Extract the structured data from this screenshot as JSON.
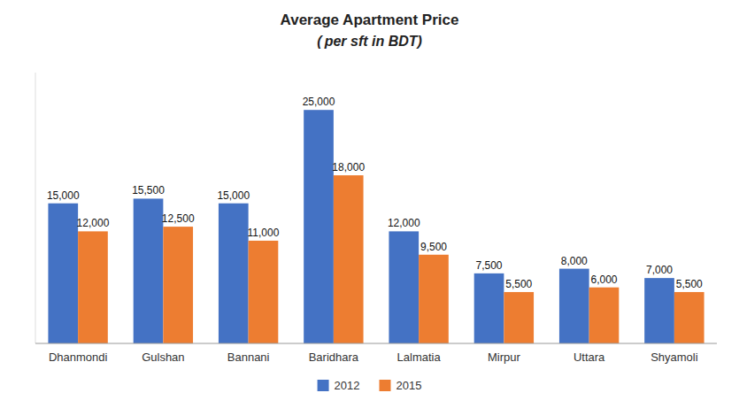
{
  "chart_data": {
    "type": "bar",
    "title": "Average Apartment Price",
    "subtitle": "( per sft in BDT)",
    "categories": [
      "Dhanmondi",
      "Gulshan",
      "Bannani",
      "Baridhara",
      "Lalmatia",
      "Mirpur",
      "Uttara",
      "Shyamoli"
    ],
    "series": [
      {
        "name": "2012",
        "color": "#4472C4",
        "values": [
          15000,
          15500,
          15000,
          25000,
          12000,
          7500,
          8000,
          7000
        ],
        "value_labels": [
          "15,000",
          "15,500",
          "15,000",
          "25,000",
          "12,000",
          "7,500",
          "8,000",
          "7,000"
        ]
      },
      {
        "name": "2015",
        "color": "#ED7D31",
        "values": [
          12000,
          12500,
          11000,
          18000,
          9500,
          5500,
          6000,
          5500
        ],
        "value_labels": [
          "12,000",
          "12,500",
          "11,000",
          "18,000",
          "9,500",
          "5,500",
          "6,000",
          "5,500"
        ]
      }
    ],
    "ylim": [
      0,
      29000
    ],
    "data_labels": true,
    "tick_labels": "x",
    "grid": false,
    "legend": "bottom"
  }
}
